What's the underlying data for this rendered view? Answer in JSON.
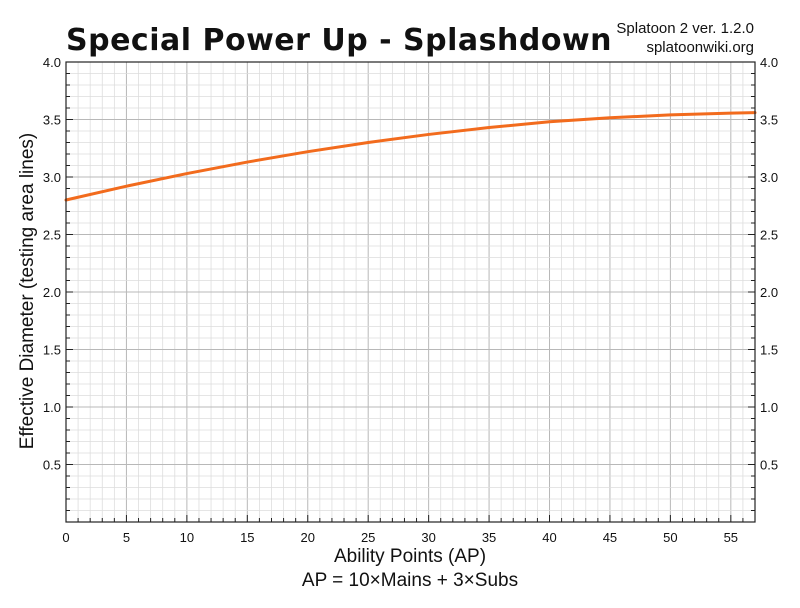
{
  "chart_data": {
    "type": "line",
    "title": "Special Power Up - Splashdown",
    "credit_line1": "Splatoon 2 ver. 1.2.0",
    "credit_line2": "splatoonwiki.org",
    "xlabel": "Ability Points (AP)",
    "xlabel_sub": "AP = 10×Mains + 3×Subs",
    "ylabel": "Effective Diameter (testing area lines)",
    "xlim": [
      0,
      57
    ],
    "ylim": [
      0,
      4.0
    ],
    "x_ticks": [
      0,
      5,
      10,
      15,
      20,
      25,
      30,
      35,
      40,
      45,
      50,
      55
    ],
    "y_ticks": [
      "0.5",
      "1.0",
      "1.5",
      "2.0",
      "2.5",
      "3.0",
      "3.5",
      "4.0"
    ],
    "grid": true,
    "series": [
      {
        "color": "#f26b1d",
        "x": [
          0,
          5,
          10,
          15,
          20,
          25,
          30,
          35,
          40,
          45,
          50,
          55,
          57
        ],
        "y": [
          2.8,
          2.92,
          3.03,
          3.13,
          3.22,
          3.3,
          3.37,
          3.43,
          3.48,
          3.515,
          3.54,
          3.555,
          3.56
        ]
      }
    ]
  }
}
